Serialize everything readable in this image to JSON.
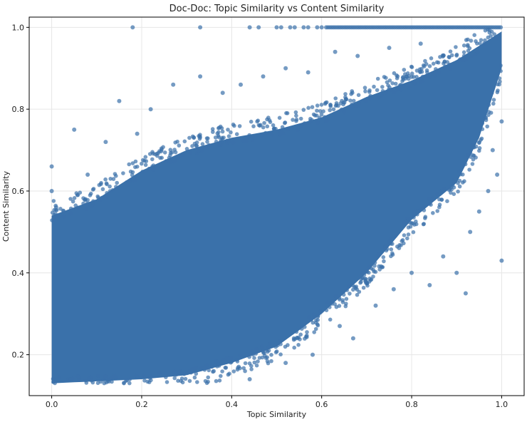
{
  "chart_data": {
    "type": "scatter",
    "title": "Doc-Doc: Topic Similarity vs Content Similarity",
    "xlabel": "Topic Similarity",
    "ylabel": "Content Similarity",
    "xlim": [
      -0.05,
      1.05
    ],
    "ylim": [
      0.1,
      1.025
    ],
    "xticks": [
      0.0,
      0.2,
      0.4,
      0.6,
      0.8,
      1.0
    ],
    "yticks": [
      0.2,
      0.4,
      0.6,
      0.8,
      1.0
    ],
    "xtick_labels": [
      "0.0",
      "0.2",
      "0.4",
      "0.6",
      "0.8",
      "1.0"
    ],
    "ytick_labels": [
      "0.2",
      "0.4",
      "0.6",
      "0.8",
      "1.0"
    ],
    "grid": true,
    "legend": false,
    "point_color": "#3a71aa",
    "point_opacity": 0.7,
    "dense_band": {
      "description": "Main mass of points forming a diagonal band",
      "lower_edge": [
        [
          0.0,
          0.13
        ],
        [
          0.2,
          0.14
        ],
        [
          0.3,
          0.15
        ],
        [
          0.4,
          0.18
        ],
        [
          0.5,
          0.22
        ],
        [
          0.6,
          0.3
        ],
        [
          0.7,
          0.4
        ],
        [
          0.8,
          0.53
        ],
        [
          0.9,
          0.62
        ],
        [
          0.95,
          0.73
        ],
        [
          1.0,
          0.9
        ]
      ],
      "upper_edge": [
        [
          0.0,
          0.54
        ],
        [
          0.1,
          0.58
        ],
        [
          0.2,
          0.65
        ],
        [
          0.3,
          0.7
        ],
        [
          0.4,
          0.73
        ],
        [
          0.5,
          0.75
        ],
        [
          0.6,
          0.78
        ],
        [
          0.7,
          0.83
        ],
        [
          0.8,
          0.87
        ],
        [
          0.9,
          0.92
        ],
        [
          1.0,
          0.99
        ]
      ]
    },
    "outlier_points": [
      [
        0.0,
        0.66
      ],
      [
        0.0,
        0.6
      ],
      [
        0.01,
        0.56
      ],
      [
        0.05,
        0.75
      ],
      [
        0.08,
        0.64
      ],
      [
        0.12,
        0.72
      ],
      [
        0.15,
        0.82
      ],
      [
        0.19,
        0.74
      ],
      [
        0.22,
        0.8
      ],
      [
        0.27,
        0.86
      ],
      [
        0.33,
        0.88
      ],
      [
        0.38,
        0.84
      ],
      [
        0.42,
        0.86
      ],
      [
        0.47,
        0.88
      ],
      [
        0.52,
        0.9
      ],
      [
        0.57,
        0.89
      ],
      [
        0.63,
        0.94
      ],
      [
        0.68,
        0.93
      ],
      [
        0.75,
        0.95
      ],
      [
        0.82,
        0.96
      ],
      [
        0.36,
        0.16
      ],
      [
        0.44,
        0.14
      ],
      [
        0.52,
        0.18
      ],
      [
        0.58,
        0.2
      ],
      [
        0.64,
        0.27
      ],
      [
        0.67,
        0.24
      ],
      [
        0.72,
        0.32
      ],
      [
        0.76,
        0.36
      ],
      [
        0.8,
        0.4
      ],
      [
        0.84,
        0.37
      ],
      [
        0.87,
        0.44
      ],
      [
        0.9,
        0.4
      ],
      [
        0.93,
        0.5
      ],
      [
        0.95,
        0.55
      ],
      [
        0.97,
        0.6
      ],
      [
        0.99,
        0.64
      ],
      [
        1.0,
        0.43
      ],
      [
        0.98,
        0.7
      ],
      [
        1.0,
        0.77
      ],
      [
        0.92,
        0.35
      ]
    ],
    "top_line_points": {
      "y": 1.0,
      "scattered_x": [
        0.18,
        0.33,
        0.44,
        0.46,
        0.5,
        0.51,
        0.53,
        0.54,
        0.56,
        0.57,
        0.59,
        0.6
      ],
      "continuous_from": 0.61,
      "continuous_to": 1.0
    }
  }
}
